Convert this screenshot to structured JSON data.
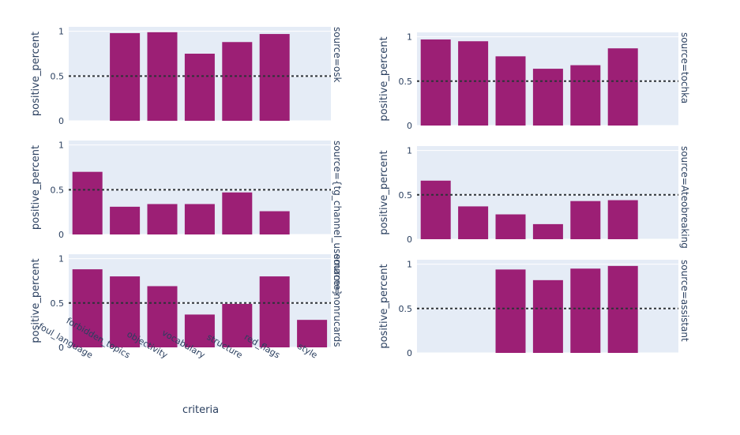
{
  "colors": {
    "bar": "#9c1f75",
    "plot_bg": "#e5ecf6",
    "grid": "#ffffff",
    "ref_line": "#2e3338",
    "text": "#2a3f5f"
  },
  "chart_data": {
    "type": "bar",
    "xlabel": "criteria",
    "ylabel": "positive_percent",
    "ylim": [
      0,
      1.05
    ],
    "y_ticks": [
      "0",
      "0.5",
      "1"
    ],
    "reference_line": 0.5,
    "categories": [
      "foul_language",
      "forbidden_topics",
      "objectivity",
      "vocabulary",
      "structure",
      "red_flags",
      "style"
    ],
    "panels": [
      {
        "facet": "source=osk",
        "values": [
          null,
          0.98,
          0.99,
          0.75,
          0.88,
          0.97,
          null
        ]
      },
      {
        "facet": "source=tochka",
        "values": [
          0.97,
          0.95,
          0.78,
          0.64,
          0.68,
          0.87,
          null
        ]
      },
      {
        "facet": "source={tg_channel_username}",
        "values": [
          0.7,
          0.31,
          0.34,
          0.34,
          0.47,
          0.26,
          null
        ]
      },
      {
        "facet": "source=Ateobreaking",
        "values": [
          0.66,
          0.37,
          0.28,
          0.17,
          0.43,
          0.44,
          null
        ]
      },
      {
        "facet": "source=nonrucards",
        "values": [
          0.88,
          0.8,
          0.69,
          0.37,
          0.49,
          0.8,
          0.31
        ]
      },
      {
        "facet": "source=assistant",
        "values": [
          null,
          null,
          0.94,
          0.82,
          0.95,
          0.98,
          null
        ]
      }
    ]
  }
}
